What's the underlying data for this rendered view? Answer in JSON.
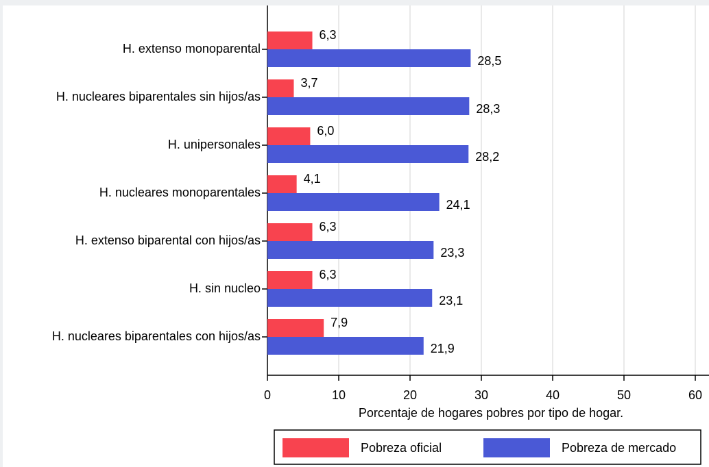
{
  "chart_data": {
    "type": "hbar",
    "categories": [
      "H. extenso monoparental",
      "H. nucleares biparentales sin hijos/as",
      "H. unipersonales",
      "H. nucleares monoparentales",
      "H. extenso biparental con hijos/as",
      "H. sin nucleo",
      "H. nucleares biparentales con hijos/as"
    ],
    "series": [
      {
        "name": "Pobreza oficial",
        "color": "#f8434f",
        "values": [
          6.3,
          3.7,
          6.0,
          4.1,
          6.3,
          6.3,
          7.9
        ],
        "value_labels": [
          "6,3",
          "3,7",
          "6,0",
          "4,1",
          "6,3",
          "6,3",
          "7,9"
        ]
      },
      {
        "name": "Pobreza de mercado",
        "color": "#4a59d6",
        "values": [
          28.5,
          28.3,
          28.2,
          24.1,
          23.3,
          23.1,
          21.9
        ],
        "value_labels": [
          "28,5",
          "28,3",
          "28,2",
          "24,1",
          "23,3",
          "23,1",
          "21,9"
        ]
      }
    ],
    "xlabel": "Porcentaje de hogares pobres por tipo de hogar.",
    "xlim": [
      0,
      60
    ],
    "xticks": [
      0,
      10,
      20,
      30,
      40,
      50,
      60
    ],
    "grid": true,
    "legend": "bottom"
  }
}
